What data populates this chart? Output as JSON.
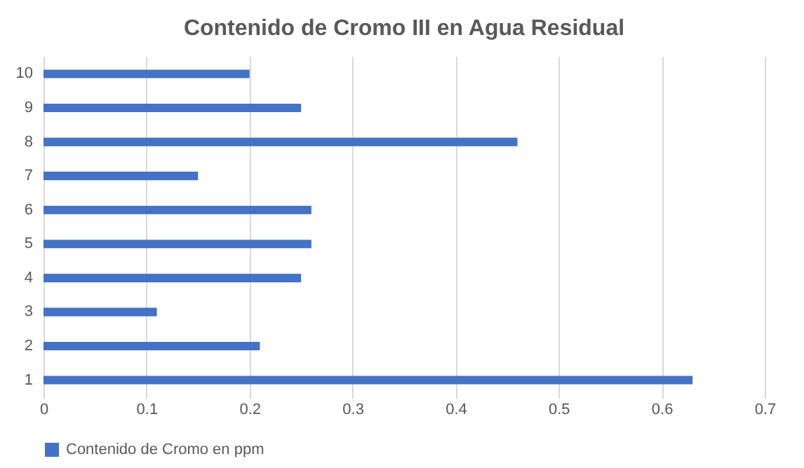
{
  "chart_data": {
    "type": "bar",
    "orientation": "horizontal",
    "title": "Contenido de Cromo III en Agua Residual",
    "categories": [
      "10",
      "9",
      "8",
      "7",
      "6",
      "5",
      "4",
      "3",
      "2",
      "1"
    ],
    "series": [
      {
        "name": "Contenido de Cromo en ppm",
        "color": "#4472c4",
        "values": [
          0.2,
          0.25,
          0.46,
          0.15,
          0.26,
          0.26,
          0.25,
          0.11,
          0.21,
          0.63
        ]
      }
    ],
    "xlim": [
      0,
      0.7
    ],
    "xticks": [
      0,
      0.1,
      0.2,
      0.3,
      0.4,
      0.5,
      0.6,
      0.7
    ],
    "grid": "x",
    "legend": "bottom"
  }
}
